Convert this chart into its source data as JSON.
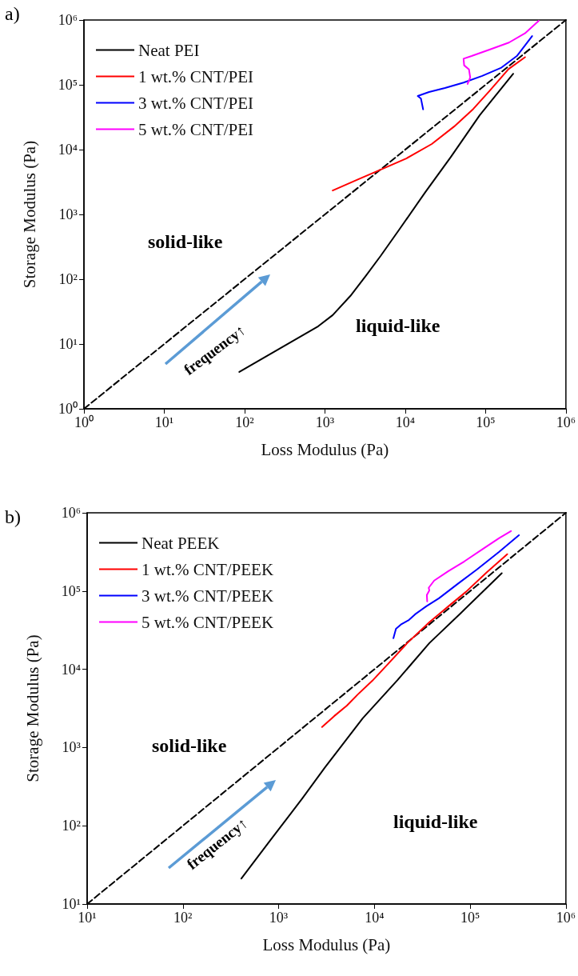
{
  "chart_data": [
    {
      "type": "line",
      "title": "a)",
      "xlabel": "Loss Modulus (Pa)",
      "ylabel": "Storage Modulus (Pa)",
      "log": "xy",
      "grid": false,
      "legend": "top left",
      "marker": "none",
      "line_style": "solid",
      "xlim": [
        1,
        1000000
      ],
      "ylim": [
        1,
        1000000
      ],
      "xticks": [
        {
          "value": 1,
          "label": "10⁰"
        },
        {
          "value": 10,
          "label": "10¹"
        },
        {
          "value": 100,
          "label": "10²"
        },
        {
          "value": 1000,
          "label": "10³"
        },
        {
          "value": 10000,
          "label": "10⁴"
        },
        {
          "value": 100000,
          "label": "10⁵"
        },
        {
          "value": 1000000,
          "label": "10⁶"
        }
      ],
      "yticks": [
        {
          "value": 1,
          "label": "10⁰"
        },
        {
          "value": 10,
          "label": "10¹"
        },
        {
          "value": 100,
          "label": "10²"
        },
        {
          "value": 1000,
          "label": "10³"
        },
        {
          "value": 10000,
          "label": "10⁴"
        },
        {
          "value": 100000,
          "label": "10⁵"
        },
        {
          "value": 1000000,
          "label": "10⁶"
        }
      ],
      "annotations": [
        "solid-like",
        "liquid-like",
        "frequency↑"
      ],
      "series": [
        {
          "type": "line",
          "line_style": "dashed",
          "color": "#000000",
          "x": [
            1,
            1000000
          ],
          "values": [
            1,
            1000000
          ]
        },
        {
          "name": "Neat PEI",
          "color": "#000000",
          "x": [
            86,
            826,
            1250,
            2070,
            3270,
            4930,
            8550,
            17800,
            37000,
            84400,
            221000
          ],
          "values": [
            3.7,
            18.8,
            27.9,
            55,
            115,
            228,
            599,
            2210,
            7720,
            33800,
            148000
          ]
        },
        {
          "name": "1 wt.% CNT/PEI",
          "color": "#ff0000",
          "x": [
            1250,
            2600,
            4930,
            10300,
            21400,
            40600,
            70300,
            111000,
            193000,
            310000
          ],
          "values": [
            2340,
            3480,
            4900,
            7290,
            12200,
            22700,
            42400,
            79300,
            175000,
            267000
          ]
        },
        {
          "name": "3 wt.% CNT/PEI",
          "color": "#0000ff",
          "x": [
            16700,
            15700,
            14300,
            19800,
            31200,
            53200,
            90800,
            155000,
            245000,
            380000
          ],
          "values": [
            41800,
            61100,
            67100,
            77400,
            89300,
            108000,
            137000,
            182000,
            278000,
            566000
          ]
        },
        {
          "name": "5 wt.% CNT/PEI",
          "color": "#ff00ff",
          "x": [
            59700,
            64400,
            62100,
            54100,
            53200,
            67000,
            114000,
            195000,
            309000,
            459000
          ],
          "values": [
            103000,
            130000,
            173000,
            200000,
            253000,
            278000,
            352000,
            448000,
            622000,
            972000
          ]
        }
      ]
    },
    {
      "type": "line",
      "title": "b)",
      "xlabel": "Loss Modulus (Pa)",
      "ylabel": "Storage Modulus (Pa)",
      "log": "xy",
      "grid": false,
      "legend": "top left",
      "marker": "none",
      "line_style": "solid",
      "xlim": [
        10,
        1000000
      ],
      "ylim": [
        10,
        1000000
      ],
      "xticks": [
        {
          "value": 10,
          "label": "10¹"
        },
        {
          "value": 100,
          "label": "10²"
        },
        {
          "value": 1000,
          "label": "10³"
        },
        {
          "value": 10000,
          "label": "10⁴"
        },
        {
          "value": 100000,
          "label": "10⁵"
        },
        {
          "value": 1000000,
          "label": "10⁶"
        }
      ],
      "yticks": [
        {
          "value": 10,
          "label": "10¹"
        },
        {
          "value": 100,
          "label": "10²"
        },
        {
          "value": 1000,
          "label": "10³"
        },
        {
          "value": 10000,
          "label": "10⁴"
        },
        {
          "value": 100000,
          "label": "10⁵"
        },
        {
          "value": 1000000,
          "label": "10⁶"
        }
      ],
      "annotations": [
        "solid-like",
        "liquid-like",
        "frequency↑"
      ],
      "series": [
        {
          "type": "line",
          "line_style": "dashed",
          "color": "#000000",
          "x": [
            10,
            1000000
          ],
          "values": [
            10,
            1000000
          ]
        },
        {
          "name": "Neat PEEK",
          "color": "#000000",
          "x": [
            408,
            824,
            1770,
            3020,
            7550,
            17500,
            37500,
            80500,
            214000
          ],
          "values": [
            21.2,
            65.8,
            224,
            548,
            2360,
            7310,
            21600,
            52800,
            169000
          ]
        },
        {
          "name": "1 wt.% CNT/PEEK",
          "color": "#ff0000",
          "x": [
            2840,
            3800,
            5160,
            6730,
            9490,
            13900,
            22000,
            37500,
            59300,
            90300,
            148000,
            244000
          ],
          "values": [
            1830,
            2520,
            3440,
            4790,
            7110,
            11700,
            21600,
            39900,
            63800,
            97500,
            172000,
            296000
          ]
        },
        {
          "name": "3 wt.% CNT/PEEK",
          "color": "#0000ff",
          "x": [
            15800,
            16800,
            18900,
            22900,
            26600,
            34800,
            47200,
            74600,
            118000,
            201000,
            323000
          ],
          "values": [
            24900,
            33000,
            37300,
            42600,
            50400,
            63800,
            80800,
            124000,
            189000,
            317000,
            518000
          ]
        },
        {
          "name": "5 wt.% CNT/PEEK",
          "color": "#ff00ff",
          "x": [
            35600,
            35300,
            37500,
            36900,
            42100,
            59300,
            86900,
            137000,
            201000,
            267000
          ],
          "values": [
            73600,
            88800,
            102000,
            110000,
            136000,
            180000,
            239000,
            348000,
            475000,
            585000
          ]
        }
      ]
    }
  ]
}
